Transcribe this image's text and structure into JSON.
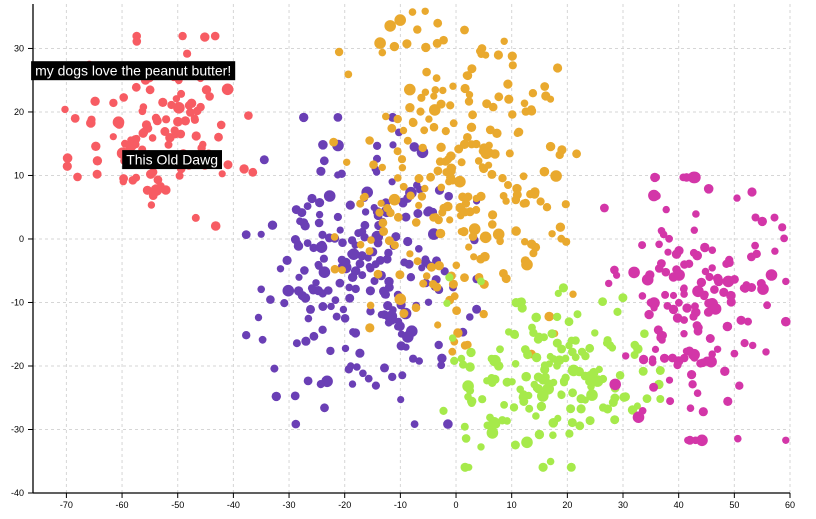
{
  "chart_data": {
    "type": "scatter",
    "xlim": [
      -76,
      60
    ],
    "ylim": [
      -40,
      37
    ],
    "x_ticks": [
      -70,
      -60,
      -50,
      -40,
      -30,
      -20,
      -10,
      0,
      10,
      20,
      30,
      40,
      50,
      60
    ],
    "y_ticks": [
      -40,
      -30,
      -20,
      -10,
      0,
      10,
      20,
      30
    ],
    "grid": true,
    "series": [
      {
        "color": "#f75c63",
        "center": [
          -53,
          17
        ],
        "spread": [
          7.5,
          6.5
        ],
        "count": 110,
        "seed": 11
      },
      {
        "color": "#6a3fb5",
        "center": [
          -17,
          -5
        ],
        "spread": [
          9,
          10.5
        ],
        "count": 230,
        "seed": 23
      },
      {
        "color": "#e9a92e",
        "center": [
          1,
          10
        ],
        "spread": [
          10,
          13
        ],
        "count": 260,
        "seed": 37
      },
      {
        "color": "#a6ea4b",
        "center": [
          16,
          -21
        ],
        "spread": [
          9,
          6.5
        ],
        "count": 170,
        "seed": 51
      },
      {
        "color": "#d336a8",
        "center": [
          42,
          -11
        ],
        "spread": [
          7.5,
          9
        ],
        "count": 160,
        "seed": 67
      }
    ],
    "annotations": [
      {
        "text": "my dogs love the peanut butter!",
        "x": -58,
        "y": 26.5
      },
      {
        "text": "This Old Dawg",
        "x": -51,
        "y": 12.5
      }
    ]
  }
}
